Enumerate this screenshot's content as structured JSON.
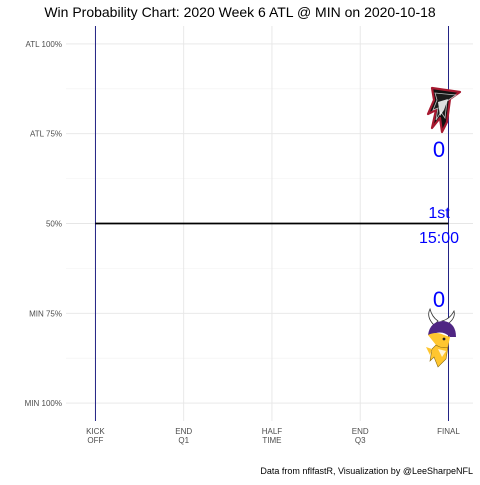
{
  "chart_data": {
    "type": "line",
    "title": "Win Probability Chart: 2020 Week 6 ATL @ MIN on 2020-10-18",
    "caption": "Data from nflfastR, Visualization by @LeeSharpeNFL",
    "x_labels": [
      {
        "value": 0,
        "lines": [
          "KICK",
          "OFF"
        ]
      },
      {
        "value": 900,
        "lines": [
          "END",
          "Q1"
        ]
      },
      {
        "value": 1800,
        "lines": [
          "HALF",
          "TIME"
        ]
      },
      {
        "value": 2700,
        "lines": [
          "END",
          "Q3"
        ]
      },
      {
        "value": 3600,
        "lines": [
          "FINAL"
        ]
      }
    ],
    "y_labels": [
      {
        "value": 1.0,
        "label": "ATL 100%"
      },
      {
        "value": 0.75,
        "label": "ATL 75%"
      },
      {
        "value": 0.5,
        "label": "50%"
      },
      {
        "value": 0.25,
        "label": "MIN 75%"
      },
      {
        "value": 0.0,
        "label": "MIN 100%"
      }
    ],
    "xlim": [
      -300,
      3850
    ],
    "ylim": [
      -0.05,
      1.05
    ],
    "grid": true,
    "series": [
      {
        "values": [
          {
            "x": 0,
            "y": 0.5
          },
          {
            "x": 3600,
            "y": 0.5
          }
        ],
        "color": "#000000"
      }
    ],
    "annotations": {
      "away_score": "0",
      "home_score": "0",
      "quarter": "1st",
      "clock": "15:00",
      "color": "#0000ff"
    },
    "logos": {
      "away": "falcons-logo",
      "home": "vikings-logo"
    },
    "vline_color": "#0d0d7a"
  }
}
